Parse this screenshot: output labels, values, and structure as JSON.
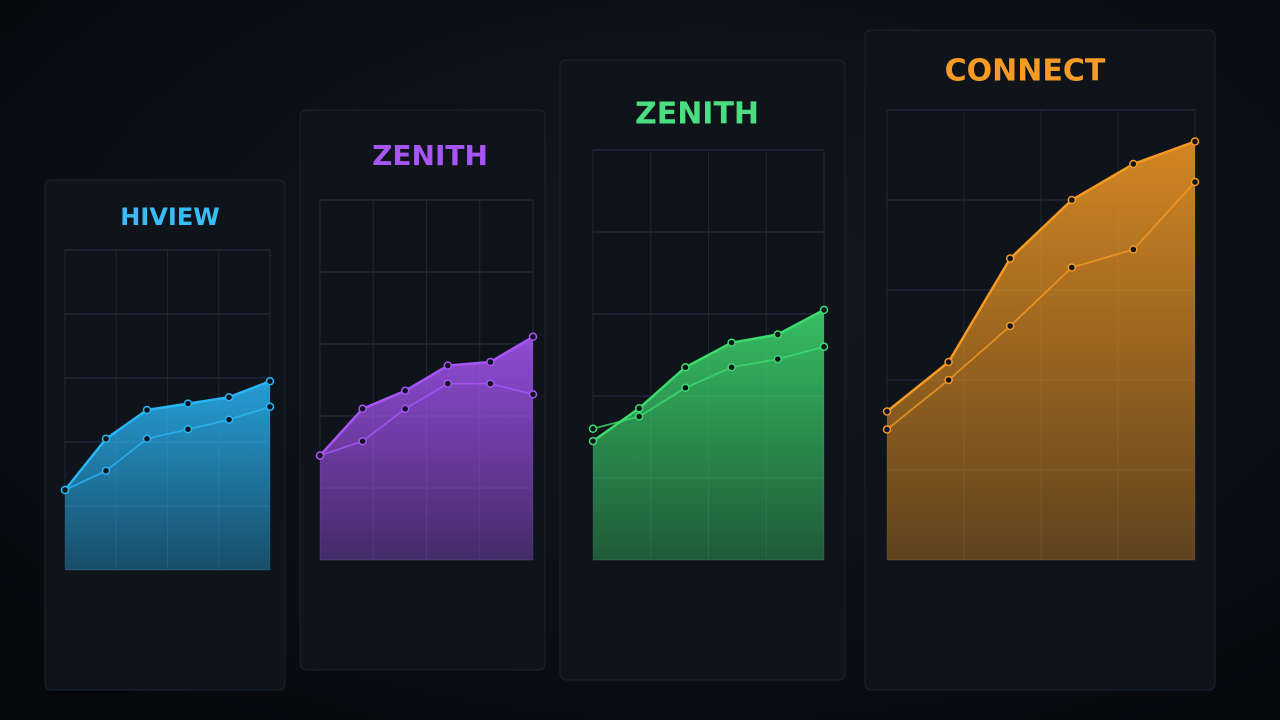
{
  "chart_data": [
    {
      "type": "area",
      "title": "HIVIEW",
      "title_color": "#38bdf8",
      "categories": [
        null,
        null,
        null,
        null,
        null,
        null
      ],
      "ylim": [
        0,
        100
      ],
      "series": [
        {
          "color": "#29b6f6",
          "values": [
            25,
            41,
            50,
            52,
            54,
            59
          ]
        },
        {
          "color": "#29b6f6",
          "values": [
            25,
            31,
            41,
            44,
            47,
            51
          ]
        }
      ]
    },
    {
      "type": "area",
      "title": "ZENITH",
      "title_color": "#a855f7",
      "categories": [
        null,
        null,
        null,
        null,
        null,
        null
      ],
      "ylim": [
        0,
        100
      ],
      "series": [
        {
          "color": "#a855f7",
          "values": [
            29,
            42,
            47,
            54,
            55,
            62
          ]
        },
        {
          "color": "#a855f7",
          "values": [
            29,
            33,
            42,
            49,
            49,
            46
          ]
        }
      ]
    },
    {
      "type": "area",
      "title": "ZENITH",
      "title_color": "#4ade80",
      "categories": [
        null,
        null,
        null,
        null,
        null,
        null
      ],
      "ylim": [
        0,
        100
      ],
      "series": [
        {
          "color": "#3ddc6f",
          "values": [
            29,
            37,
            47,
            53,
            55,
            61
          ]
        },
        {
          "color": "#3ddc6f",
          "values": [
            32,
            35,
            42,
            47,
            49,
            52
          ]
        }
      ]
    },
    {
      "type": "area",
      "title": "CONNECT",
      "title_color": "#f59a23",
      "categories": [
        null,
        null,
        null,
        null,
        null,
        null
      ],
      "ylim": [
        0,
        100
      ],
      "series": [
        {
          "color": "#f59a23",
          "values": [
            33,
            44,
            67,
            80,
            88,
            93
          ]
        },
        {
          "color": "#f59a23",
          "values": [
            29,
            40,
            52,
            65,
            69,
            84
          ]
        }
      ]
    }
  ]
}
